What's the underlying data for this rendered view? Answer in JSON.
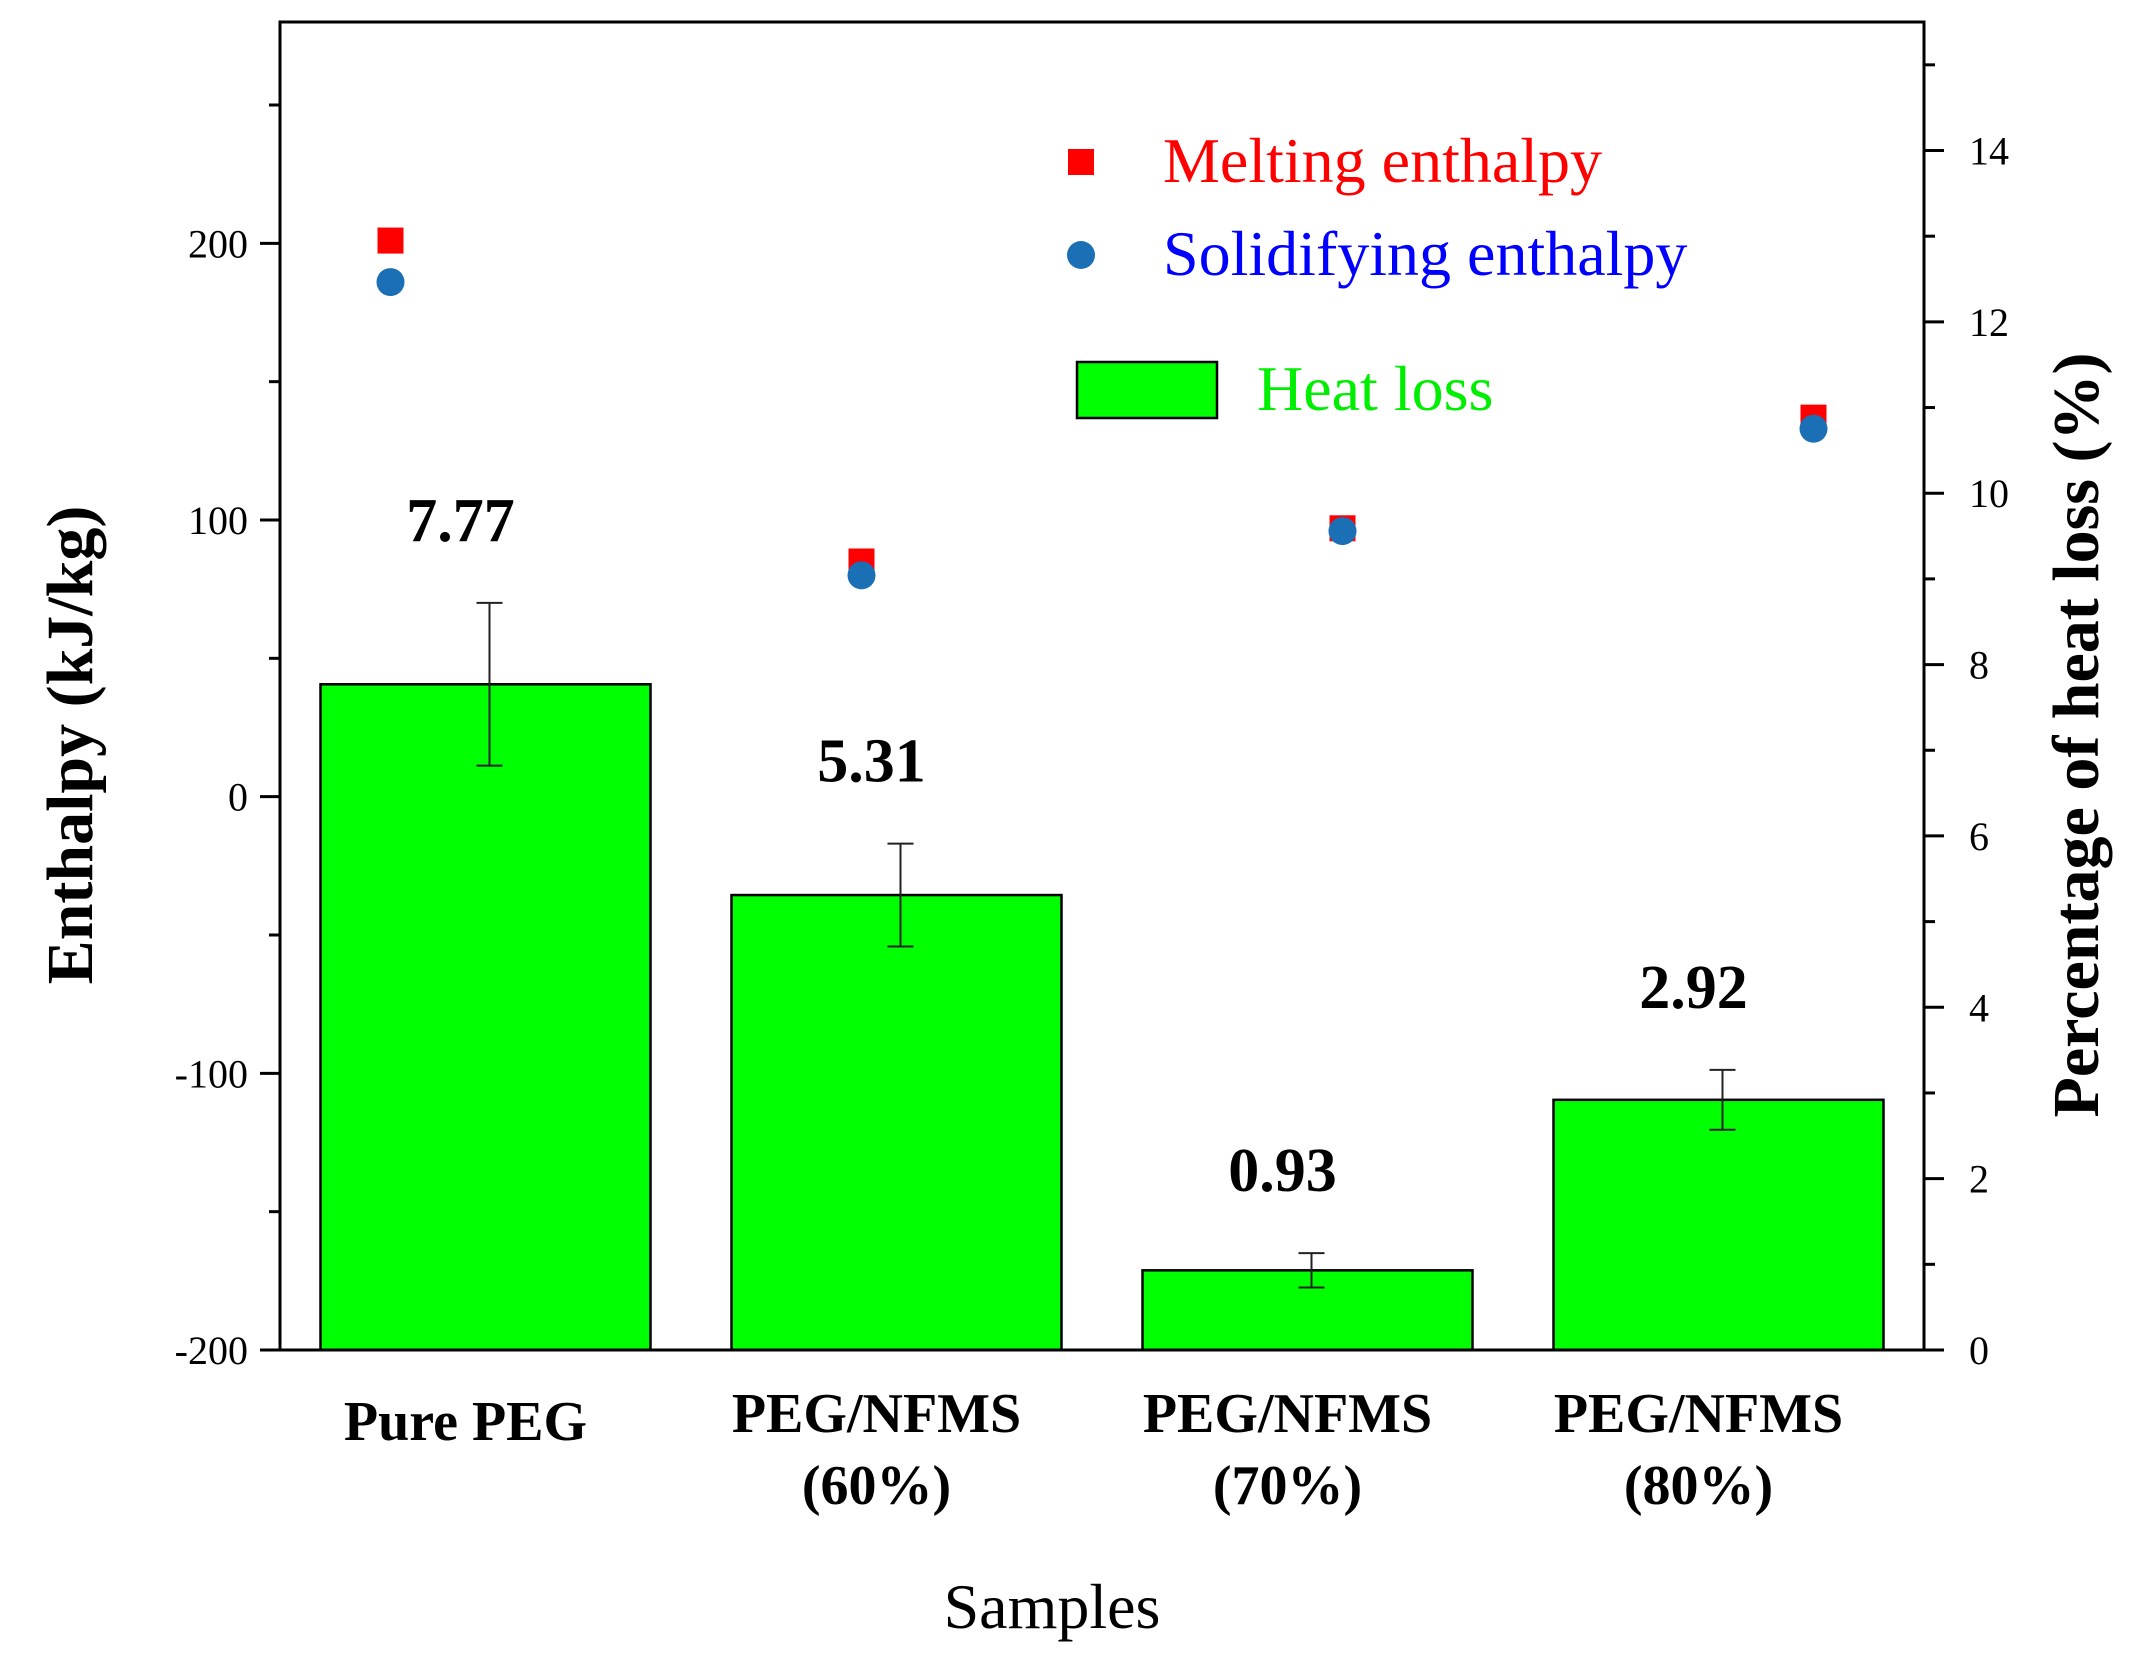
{
  "chart_data": {
    "type": "bar",
    "categories": [
      [
        "Pure PEG"
      ],
      [
        "PEG/NFMS",
        "(60%)"
      ],
      [
        "PEG/NFMS",
        "(70%)"
      ],
      [
        "PEG/NFMS",
        "(80%)"
      ]
    ],
    "xlabel": "Samples",
    "ylabel_left": "Enthalpy (kJ/kg)",
    "ylabel_right": "Percentage of heat loss (%)",
    "ylim_left": [
      -200,
      280
    ],
    "yticks_left": [
      -200,
      -100,
      0,
      100,
      200
    ],
    "ylim_right": [
      0,
      15.5
    ],
    "yticks_right": [
      0,
      2,
      4,
      6,
      8,
      10,
      12,
      14
    ],
    "series": [
      {
        "name": "Heat loss",
        "type": "bar",
        "axis": "right",
        "color": "#00ff00",
        "values": [
          7.77,
          5.31,
          0.93,
          2.92
        ],
        "errors": [
          0.95,
          0.6,
          0.2,
          0.35
        ],
        "labels": [
          "7.77",
          "5.31",
          "0.93",
          "2.92"
        ]
      },
      {
        "name": "Melting enthalpy",
        "type": "scatter",
        "marker": "square",
        "axis": "left",
        "color": "#ff0000",
        "values": [
          201,
          85,
          97,
          137
        ]
      },
      {
        "name": "Solidifying enthalpy",
        "type": "scatter",
        "marker": "circle",
        "axis": "left",
        "color": "#1a6fb5",
        "values": [
          186,
          80,
          96,
          133
        ]
      }
    ],
    "legend": {
      "placement": "top-right",
      "items": [
        {
          "label": "Melting enthalpy",
          "text_color": "#ff0000",
          "marker": "square",
          "marker_color": "#ff0000"
        },
        {
          "label": "Solidifying enthalpy",
          "text_color": "#0000ff",
          "marker": "circle",
          "marker_color": "#1a6fb5"
        },
        {
          "label": "Heat loss",
          "text_color": "#00ee00",
          "marker": "bar",
          "marker_color": "#00ff00"
        }
      ]
    }
  }
}
